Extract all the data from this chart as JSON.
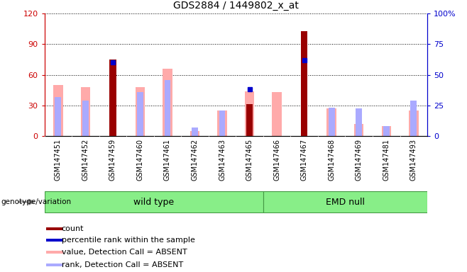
{
  "title": "GDS2884 / 1449802_x_at",
  "samples": [
    "GSM147451",
    "GSM147452",
    "GSM147459",
    "GSM147460",
    "GSM147461",
    "GSM147462",
    "GSM147463",
    "GSM147465",
    "GSM147466",
    "GSM147467",
    "GSM147468",
    "GSM147469",
    "GSM147481",
    "GSM147493"
  ],
  "group_split": 8,
  "wild_type_label": "wild type",
  "emd_null_label": "EMD null",
  "count_values": [
    0,
    0,
    75,
    0,
    0,
    0,
    0,
    31,
    0,
    103,
    0,
    0,
    0,
    0
  ],
  "percentile_values": [
    null,
    null,
    60,
    null,
    null,
    null,
    null,
    38,
    null,
    62,
    null,
    null,
    null,
    null
  ],
  "absent_value_values": [
    50,
    48,
    0,
    48,
    66,
    5,
    25,
    44,
    43,
    0,
    27,
    12,
    10,
    25
  ],
  "absent_rank_values": [
    38,
    35,
    0,
    43,
    55,
    8,
    25,
    0,
    0,
    0,
    28,
    27,
    10,
    35
  ],
  "ylim_left": [
    0,
    120
  ],
  "ylim_right": [
    0,
    100
  ],
  "yticks_left": [
    0,
    30,
    60,
    90,
    120
  ],
  "yticks_right": [
    0,
    25,
    50,
    75,
    100
  ],
  "count_color": "#990000",
  "percentile_color": "#0000cc",
  "absent_value_color": "#ffaaaa",
  "absent_rank_color": "#aaaaff",
  "group_box_color": "#88ee88",
  "group_box_edge": "#449944",
  "bg_color": "#d8d8d8",
  "plot_bg_color": "#ffffff",
  "legend_label_count": "count",
  "legend_label_percentile": "percentile rank within the sample",
  "legend_label_absent_value": "value, Detection Call = ABSENT",
  "legend_label_absent_rank": "rank, Detection Call = ABSENT",
  "left_axis_color": "#cc0000",
  "right_axis_color": "#0000cc",
  "genotype_label": "genotype/variation"
}
